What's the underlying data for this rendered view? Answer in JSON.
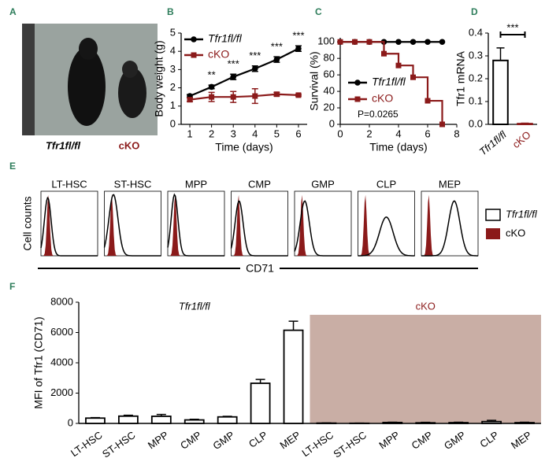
{
  "panel_labels": [
    "A",
    "B",
    "C",
    "D",
    "E",
    "F"
  ],
  "panel_a": {
    "labels": [
      "Tfr1fl/fl",
      "cKO"
    ]
  },
  "panel_e": {
    "populations": [
      "LT-HSC",
      "ST-HSC",
      "MPP",
      "CMP",
      "GMP",
      "CLP",
      "MEP"
    ],
    "y_label": "Cell counts",
    "x_label": "CD71",
    "legend": [
      "Tfr1fl/fl",
      "cKO"
    ]
  },
  "chart_data": [
    {
      "type": "line",
      "xlabel": "Time (days)",
      "ylabel": "Body weight (g)",
      "x": [
        1,
        2,
        3,
        4,
        5,
        6
      ],
      "xlim": [
        0.6,
        6.4
      ],
      "xticks": [
        1,
        2,
        3,
        4,
        5,
        6
      ],
      "ylim": [
        0,
        5
      ],
      "yticks": [
        0,
        1,
        2,
        3,
        4,
        5
      ],
      "series": [
        {
          "name": "Tfr1fl/fl",
          "color": "#000000",
          "marker": "circle",
          "values": [
            1.55,
            2.05,
            2.6,
            3.05,
            3.55,
            4.15
          ],
          "errors": [
            0.08,
            0.1,
            0.15,
            0.15,
            0.15,
            0.15
          ]
        },
        {
          "name": "cKO",
          "color": "#8b1a1a",
          "marker": "square",
          "values": [
            1.35,
            1.5,
            1.5,
            1.55,
            1.65,
            1.6
          ],
          "errors": [
            0.1,
            0.25,
            0.3,
            0.4,
            0.1,
            0.05
          ]
        }
      ],
      "significance": [
        null,
        "**",
        "***",
        "***",
        "***",
        "***"
      ]
    },
    {
      "type": "step",
      "xlabel": "Time (days)",
      "ylabel": "Survival (%)",
      "x": [
        0,
        1,
        2,
        3,
        4,
        5,
        6,
        7
      ],
      "xlim": [
        0,
        8
      ],
      "xticks": [
        0,
        2,
        4,
        6,
        8
      ],
      "ylim": [
        0,
        105
      ],
      "yticks": [
        0,
        20,
        40,
        60,
        80,
        100
      ],
      "series": [
        {
          "name": "Tfr1fl/fl",
          "color": "#000000",
          "marker": "circle",
          "values": [
            100,
            100,
            100,
            100,
            100,
            100,
            100,
            100
          ]
        },
        {
          "name": "cKO",
          "color": "#8b1a1a",
          "marker": "square",
          "values": [
            100,
            100,
            100,
            85.7,
            71.4,
            57.1,
            28.6,
            0
          ]
        }
      ],
      "annotation": "P=0.0265"
    },
    {
      "type": "bar",
      "ylabel": "Tfr1 mRNA",
      "categories": [
        "Tfr1fl/fl",
        "cKO"
      ],
      "values": [
        0.28,
        0.003
      ],
      "errors": [
        0.055,
        0.002
      ],
      "colors": [
        "#000000",
        "#8b1a1a"
      ],
      "ylim": [
        0,
        0.4
      ],
      "yticks": [
        {
          "value": 0,
          "label": "0.0"
        },
        0.1,
        0.2,
        0.3,
        0.4
      ],
      "significance": "***"
    },
    {
      "type": "grouped-bar",
      "ylabel": "MFI of Tfr1 (CD71)",
      "categories": [
        "LT-HSC",
        "ST-HSC",
        "MPP",
        "CMP",
        "GMP",
        "CLP",
        "MEP"
      ],
      "ylim": [
        0,
        8000
      ],
      "yticks": [
        0,
        2000,
        4000,
        6000,
        8000
      ],
      "shade_color": "#c9aea5",
      "series": [
        {
          "name": "Tfr1fl/fl",
          "color": "#000000",
          "values": [
            350,
            480,
            470,
            230,
            430,
            2650,
            6150
          ],
          "errors": [
            30,
            60,
            120,
            40,
            40,
            250,
            600
          ]
        },
        {
          "name": "cKO",
          "color": "#8b1a1a",
          "values": [
            20,
            10,
            60,
            40,
            50,
            120,
            50
          ],
          "errors": [
            10,
            10,
            20,
            30,
            30,
            80,
            30
          ]
        }
      ]
    }
  ]
}
